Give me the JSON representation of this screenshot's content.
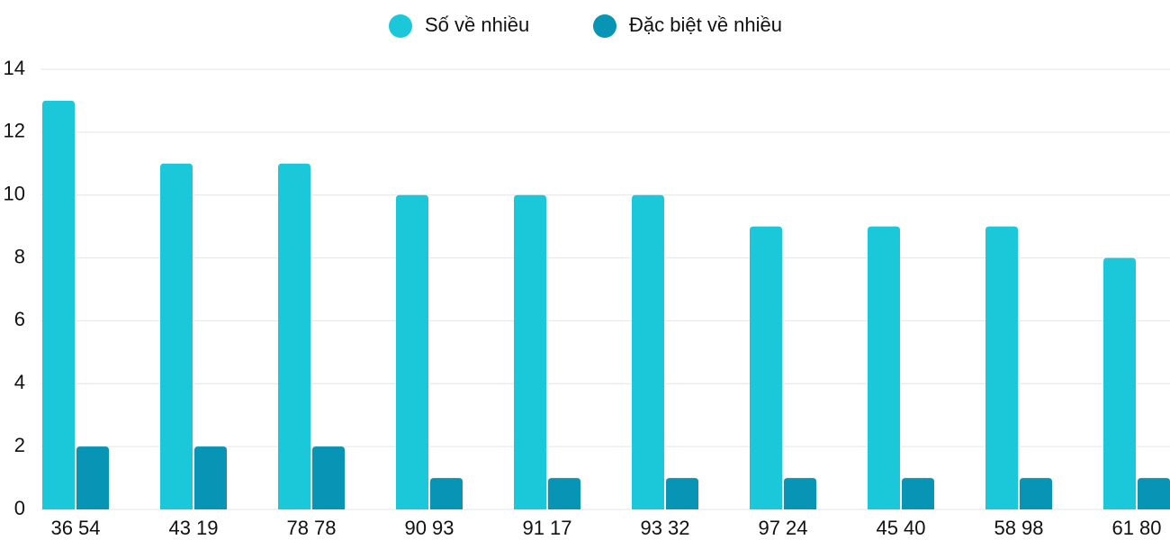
{
  "chart_data": {
    "type": "bar",
    "categories": [
      "36 54",
      "43 19",
      "78 78",
      "90 93",
      "91 17",
      "93 32",
      "97 24",
      "45 40",
      "58 98",
      "61 80"
    ],
    "series": [
      {
        "name": "Số về nhiều",
        "color": "#1bc8da",
        "values": [
          13,
          11,
          11,
          10,
          10,
          10,
          9,
          9,
          9,
          8
        ]
      },
      {
        "name": "Đặc biệt về nhiều",
        "color": "#0895b5",
        "values": [
          2,
          2,
          2,
          1,
          1,
          1,
          1,
          1,
          1,
          1
        ]
      }
    ],
    "ylim": [
      0,
      14
    ],
    "yticks": [
      0,
      2,
      4,
      6,
      8,
      10,
      12,
      14
    ],
    "grid": true,
    "legend": "top"
  }
}
